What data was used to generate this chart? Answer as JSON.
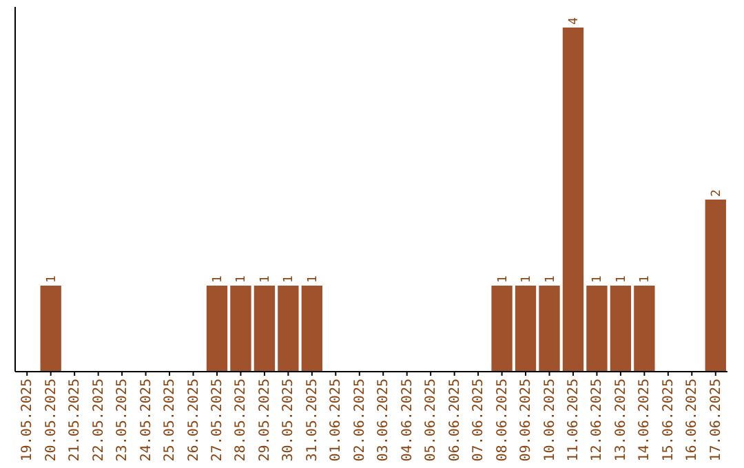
{
  "chart_data": {
    "type": "bar",
    "categories": [
      "19.05.2025",
      "20.05.2025",
      "21.05.2025",
      "22.05.2025",
      "23.05.2025",
      "24.05.2025",
      "25.05.2025",
      "26.05.2025",
      "27.05.2025",
      "28.05.2025",
      "29.05.2025",
      "30.05.2025",
      "31.05.2025",
      "01.06.2025",
      "02.06.2025",
      "03.06.2025",
      "04.06.2025",
      "05.06.2025",
      "06.06.2025",
      "07.06.2025",
      "08.06.2025",
      "09.06.2025",
      "10.06.2025",
      "11.06.2025",
      "12.06.2025",
      "13.06.2025",
      "14.06.2025",
      "15.06.2025",
      "16.06.2025",
      "17.06.2025"
    ],
    "values": [
      0,
      1,
      0,
      0,
      0,
      0,
      0,
      0,
      1,
      1,
      1,
      1,
      1,
      0,
      0,
      0,
      0,
      0,
      0,
      0,
      1,
      1,
      1,
      4,
      1,
      1,
      1,
      0,
      0,
      2
    ],
    "value_labels": [
      null,
      "1",
      null,
      null,
      null,
      null,
      null,
      null,
      "1",
      "1",
      "1",
      "1",
      "1",
      null,
      null,
      null,
      null,
      null,
      null,
      null,
      "1",
      "1",
      "1",
      "4",
      "1",
      "1",
      "1",
      null,
      null,
      "2"
    ],
    "color": "#a0522d",
    "tick_labels": "x"
  }
}
